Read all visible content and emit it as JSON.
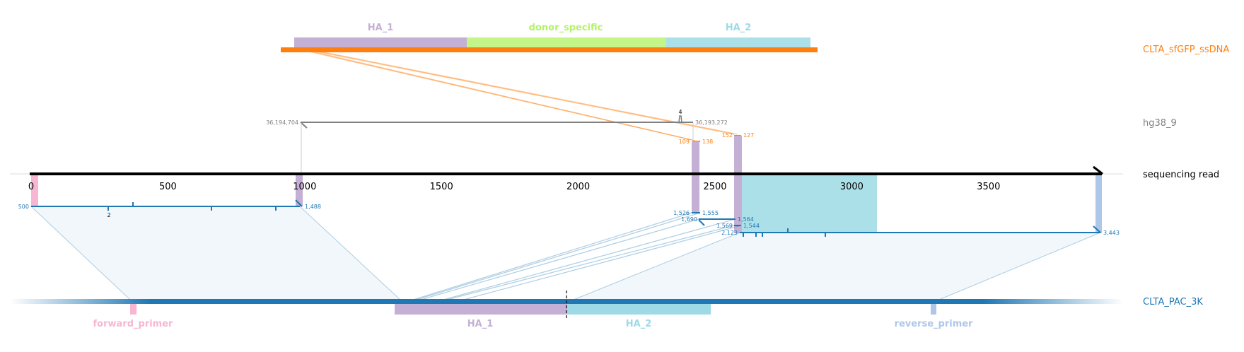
{
  "tracks": {
    "donor": "CLTA_sfGFP_ssDNA",
    "genome": "hg38_9",
    "read": "sequencing read",
    "target": "CLTA_PAC_3K"
  },
  "colors": {
    "donor": "#ff7f0e",
    "genome": "#808080",
    "read_align": "#1f77b4",
    "HA_1": "#c5b0d5",
    "HA_2": "#9edae5",
    "donor_specific": "#b5f26b",
    "forward_primer": "#f7b6d2",
    "reverse_primer": "#aec7e8"
  },
  "donor_features": [
    {
      "name": "HA_1"
    },
    {
      "name": "donor_specific"
    },
    {
      "name": "HA_2"
    }
  ],
  "target_features": [
    {
      "name": "forward_primer"
    },
    {
      "name": "HA_1"
    },
    {
      "name": "HA_2"
    },
    {
      "name": "reverse_primer"
    }
  ],
  "read_axis": {
    "ticks": [
      "0",
      "500",
      "1000",
      "1500",
      "2000",
      "2500",
      "3000",
      "3500"
    ]
  },
  "genome_alignment": {
    "start": "36,194,704",
    "end": "36,193,272",
    "insertion": "4"
  },
  "donor_alignments": [
    {
      "start": "109",
      "end": "138"
    },
    {
      "start": "152",
      "end": "127"
    }
  ],
  "target_alignments": [
    {
      "start": "500",
      "end": "1,488",
      "insertion": "2"
    },
    {
      "start": "1,526",
      "end": "1,555"
    },
    {
      "start": "1,690",
      "end": "1,564"
    },
    {
      "start": "1,569",
      "end": "1,544"
    },
    {
      "start": "2,123",
      "end": "3,443"
    }
  ]
}
